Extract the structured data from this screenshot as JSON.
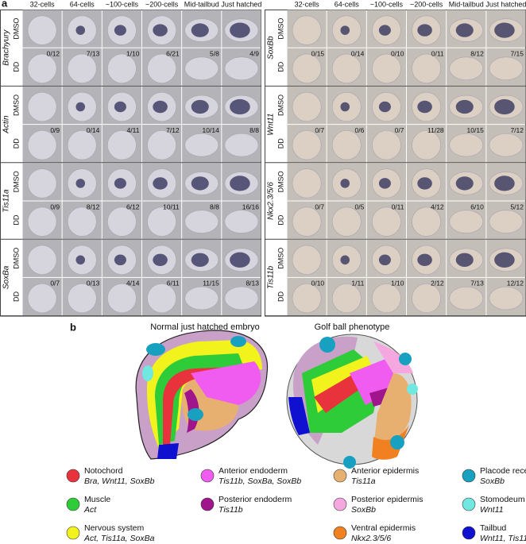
{
  "panel_a": {
    "label": "a",
    "grids": [
      {
        "columns": [
          "32-cells",
          "64-cells",
          "~100-cells",
          "~200-cells",
          "Mid-tailbud",
          "Just hatched"
        ],
        "genes": [
          {
            "name": "Brachyury",
            "conditions": [
              "DMSO",
              "DD"
            ],
            "fractions": [
              "0/12",
              "7/13",
              "1/10",
              "6/21",
              "5/8",
              "4/9"
            ]
          },
          {
            "name": "Actin",
            "conditions": [
              "DMSO",
              "DD"
            ],
            "fractions": [
              "0/9",
              "0/14",
              "4/11",
              "7/12",
              "10/14",
              "8/8"
            ]
          },
          {
            "name": "Tis11a",
            "conditions": [
              "DMSO",
              "DD"
            ],
            "fractions": [
              "0/9",
              "8/12",
              "6/12",
              "10/11",
              "8/8",
              "16/16"
            ]
          },
          {
            "name": "SoxBa",
            "conditions": [
              "DMSO",
              "DD"
            ],
            "fractions": [
              "0/7",
              "0/13",
              "4/14",
              "6/11",
              "11/15",
              "8/13"
            ]
          }
        ]
      },
      {
        "columns": [
          "32-cells",
          "64-cells",
          "~100-cells",
          "~200-cells",
          "Mid-tailbud",
          "Just hatched"
        ],
        "genes": [
          {
            "name": "SoxBb",
            "conditions": [
              "DMSO",
              "DD"
            ],
            "fractions": [
              "0/15",
              "0/14",
              "0/10",
              "0/11",
              "8/12",
              "7/15"
            ]
          },
          {
            "name": "Wnt11",
            "conditions": [
              "DMSO",
              "DD"
            ],
            "fractions": [
              "0/7",
              "0/6",
              "0/7",
              "11/28",
              "10/15",
              "7/12"
            ]
          },
          {
            "name": "Nkx2.3/5/6",
            "conditions": [
              "DMSO",
              "DD"
            ],
            "fractions": [
              "0/7",
              "0/5",
              "0/11",
              "4/12",
              "6/10",
              "5/12"
            ]
          },
          {
            "name": "Tis11b",
            "conditions": [
              "DMSO",
              "DD"
            ],
            "fractions": [
              "0/10",
              "1/11",
              "1/10",
              "2/12",
              "7/13",
              "12/12"
            ]
          }
        ]
      }
    ]
  },
  "panel_b": {
    "label": "b",
    "diagrams": [
      "Normal just hatched embryo",
      "Golf ball phenotype"
    ],
    "legend": [
      [
        {
          "name": "Notochord",
          "genes": "Bra, Wnt11, SoxBb",
          "color": "#e8323c"
        },
        {
          "name": "Muscle",
          "genes": "Act",
          "color": "#2fcc3a"
        },
        {
          "name": "Nervous system",
          "genes": "Act, Tis11a, SoxBa",
          "color": "#f2f21c"
        }
      ],
      [
        {
          "name": "Anterior endoderm",
          "genes": "Tis11b, SoxBa, SoxBb",
          "color": "#f05cf0"
        },
        {
          "name": "Posterior endoderm",
          "genes": "Tis11b",
          "color": "#a0148c"
        }
      ],
      [
        {
          "name": "Anterior epidermis",
          "genes": "Tis11a",
          "color": "#e8b070"
        },
        {
          "name": "Posterior epidermis",
          "genes": "SoxBb",
          "color": "#f5a8e0"
        },
        {
          "name": "Ventral epidermis",
          "genes": "Nkx2.3/5/6",
          "color": "#f08020"
        }
      ],
      [
        {
          "name": "Placode receptors",
          "genes": "SoxBb",
          "color": "#18a0c0"
        },
        {
          "name": "Stomodeum",
          "genes": "Wnt11",
          "color": "#70e8e0"
        },
        {
          "name": "Tailbud",
          "genes": "Wnt11, Tis11a",
          "color": "#1010d0"
        }
      ]
    ]
  }
}
